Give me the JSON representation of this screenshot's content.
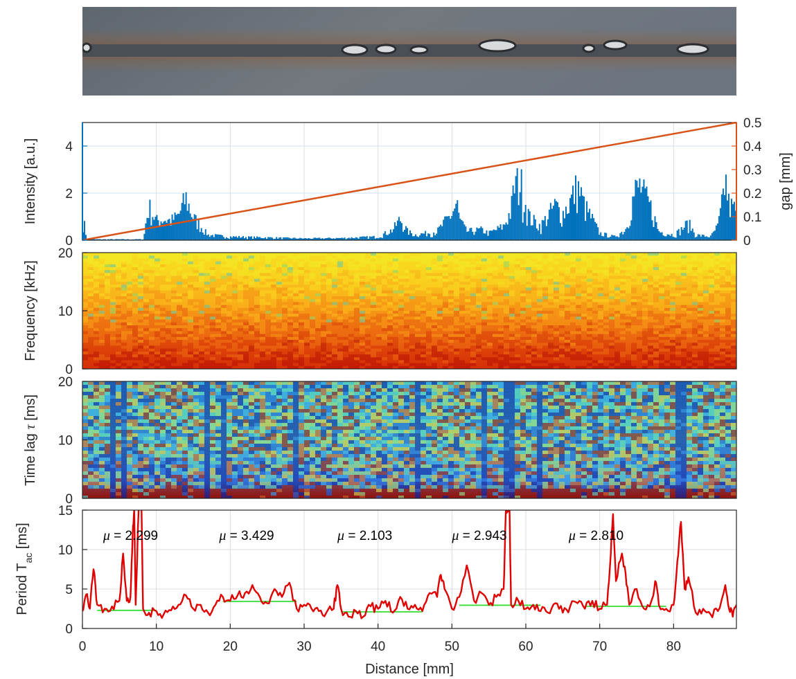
{
  "colors": {
    "intensity": "#0072BD",
    "gap": "#D95319",
    "period": "#E00000",
    "mean": "#33DD33",
    "grid": "#DDDDDD",
    "frame": "#262626"
  },
  "chart_data": [
    {
      "type": "image",
      "description_icon": "weld-seam-photo"
    },
    {
      "type": "bar",
      "ylabel": "Intensity [a.u.]",
      "y2label": "gap [mm]",
      "xlim": [
        0,
        88.5
      ],
      "ylim": [
        0,
        5
      ],
      "y2lim": [
        0,
        0.5
      ],
      "yticks": [
        "0",
        "2",
        "4"
      ],
      "y2ticks": [
        "0",
        "0.1",
        "0.2",
        "0.3",
        "0.4",
        "0.5"
      ],
      "gap_line": {
        "x": [
          0,
          88.5
        ],
        "y": [
          0,
          0.5
        ]
      },
      "intensity_envelope": [
        [
          0,
          1.6
        ],
        [
          0.3,
          0.8
        ],
        [
          0.6,
          0.05
        ],
        [
          8.3,
          0.05
        ],
        [
          8.5,
          0.8
        ],
        [
          9,
          1.9
        ],
        [
          10,
          1.1
        ],
        [
          11,
          1.2
        ],
        [
          12,
          1.1
        ],
        [
          13,
          1.4
        ],
        [
          14,
          2.4
        ],
        [
          15,
          1.3
        ],
        [
          16,
          0.8
        ],
        [
          17,
          0.3
        ],
        [
          20,
          0.2
        ],
        [
          25,
          0.15
        ],
        [
          30,
          0.1
        ],
        [
          35,
          0.12
        ],
        [
          40,
          0.2
        ],
        [
          42,
          0.6
        ],
        [
          43,
          1.2
        ],
        [
          44,
          0.5
        ],
        [
          45,
          0.3
        ],
        [
          48,
          0.5
        ],
        [
          49,
          1.0
        ],
        [
          50,
          1.5
        ],
        [
          50.7,
          2.1
        ],
        [
          51,
          1.2
        ],
        [
          52,
          0.5
        ],
        [
          54,
          0.6
        ],
        [
          55,
          0.4
        ],
        [
          56,
          0.6
        ],
        [
          57,
          0.8
        ],
        [
          58,
          1.7
        ],
        [
          58.5,
          3.2
        ],
        [
          59.3,
          3.3
        ],
        [
          59.8,
          2.5
        ],
        [
          60.5,
          1.3
        ],
        [
          62,
          0.8
        ],
        [
          64,
          2.0
        ],
        [
          65,
          1.5
        ],
        [
          66,
          2.2
        ],
        [
          67,
          3.1
        ],
        [
          68,
          1.9
        ],
        [
          69,
          1.2
        ],
        [
          70,
          0.4
        ],
        [
          71,
          0.3
        ],
        [
          72,
          0.2
        ],
        [
          73.5,
          0.6
        ],
        [
          74,
          1.5
        ],
        [
          74.8,
          2.8
        ],
        [
          75.5,
          3.1
        ],
        [
          76,
          2.6
        ],
        [
          77,
          1.8
        ],
        [
          78,
          0.5
        ],
        [
          80,
          0.3
        ],
        [
          81,
          0.6
        ],
        [
          82,
          1.0
        ],
        [
          83,
          0.3
        ],
        [
          85,
          0.2
        ],
        [
          86,
          0.8
        ],
        [
          86.5,
          1.9
        ],
        [
          87,
          3.5
        ],
        [
          87.5,
          2.0
        ],
        [
          88.5,
          1.7
        ]
      ]
    },
    {
      "type": "heatmap",
      "ylabel": "Frequency [kHz]",
      "ylim": [
        0,
        20
      ],
      "yticks": [
        "0",
        "10",
        "20"
      ],
      "colormap": "jet"
    },
    {
      "type": "heatmap",
      "ylabel": "Time lag τ [ms]",
      "ylabel_text": "Time lag ",
      "ylabel_symbol": "τ",
      "ylabel_unit": " [ms]",
      "ylim": [
        0,
        20
      ],
      "yticks": [
        "0",
        "10",
        "20"
      ],
      "colormap": "jet"
    },
    {
      "type": "line",
      "ylabel_main": "Period T",
      "ylabel_sub": "ac",
      "ylabel_unit": " [ms]",
      "xlabel": "Distance [mm]",
      "xlim": [
        0,
        88.5
      ],
      "ylim": [
        0,
        15
      ],
      "xticks": [
        "0",
        "10",
        "20",
        "30",
        "40",
        "50",
        "60",
        "70",
        "80"
      ],
      "yticks": [
        "0",
        "5",
        "10",
        "15"
      ],
      "segments": [
        {
          "mu_symbol": "μ",
          "mu_text": " = 2.299",
          "x": [
            2,
            10
          ],
          "mean": 2.299,
          "label_x": 2.8
        },
        {
          "mu_symbol": "μ",
          "mu_text": " = 3.429",
          "x": [
            19,
            29
          ],
          "mean": 3.429,
          "label_x": 18.5
        },
        {
          "mu_symbol": "μ",
          "mu_text": " = 2.103",
          "x": [
            35,
            46
          ],
          "mean": 2.103,
          "label_x": 34.5
        },
        {
          "mu_symbol": "μ",
          "mu_text": " = 2.943",
          "x": [
            51,
            62
          ],
          "mean": 2.943,
          "label_x": 50
        },
        {
          "mu_symbol": "μ",
          "mu_text": " = 2.810",
          "x": [
            68,
            79
          ],
          "mean": 2.81,
          "label_x": 65.8
        }
      ],
      "period_trace": [
        [
          0,
          2.2
        ],
        [
          0.5,
          4.3
        ],
        [
          1,
          2.5
        ],
        [
          1.5,
          7.5
        ],
        [
          2,
          3
        ],
        [
          3,
          2.5
        ],
        [
          4,
          2.8
        ],
        [
          5,
          3.5
        ],
        [
          5.5,
          9.5
        ],
        [
          6,
          3.5
        ],
        [
          6.5,
          4
        ],
        [
          6.8,
          12
        ],
        [
          7.0,
          15
        ],
        [
          7.2,
          3
        ],
        [
          7.6,
          15
        ],
        [
          8.0,
          15
        ],
        [
          8.2,
          2.5
        ],
        [
          9,
          2
        ],
        [
          10,
          2.2
        ],
        [
          11,
          1.8
        ],
        [
          12,
          2.3
        ],
        [
          13,
          3
        ],
        [
          14,
          4.2
        ],
        [
          15,
          2.5
        ],
        [
          16,
          3
        ],
        [
          17,
          2
        ],
        [
          18,
          3
        ],
        [
          19,
          4
        ],
        [
          20,
          3.5
        ],
        [
          21,
          4.2
        ],
        [
          22,
          4.5
        ],
        [
          23,
          5.5
        ],
        [
          24,
          4
        ],
        [
          25,
          3.2
        ],
        [
          26,
          5
        ],
        [
          27,
          4
        ],
        [
          28,
          5.8
        ],
        [
          29,
          2.5
        ],
        [
          30,
          3
        ],
        [
          31,
          2.5
        ],
        [
          32,
          2.2
        ],
        [
          33,
          2
        ],
        [
          34,
          2.5
        ],
        [
          34.5,
          5.5
        ],
        [
          35,
          2.5
        ],
        [
          36,
          1.5
        ],
        [
          37,
          2.2
        ],
        [
          38,
          1.5
        ],
        [
          39,
          2.8
        ],
        [
          40,
          2.5
        ],
        [
          41,
          3.5
        ],
        [
          42,
          2
        ],
        [
          43,
          4
        ],
        [
          44,
          2.5
        ],
        [
          45,
          3
        ],
        [
          46,
          2.2
        ],
        [
          47,
          4.5
        ],
        [
          48,
          4
        ],
        [
          48.5,
          6.8
        ],
        [
          49,
          5
        ],
        [
          50,
          2.5
        ],
        [
          51,
          4
        ],
        [
          52,
          8
        ],
        [
          53,
          3.5
        ],
        [
          54,
          4.5
        ],
        [
          55,
          3
        ],
        [
          56,
          4
        ],
        [
          57,
          5
        ],
        [
          57.3,
          15
        ],
        [
          57.8,
          15
        ],
        [
          58,
          3
        ],
        [
          59,
          3.5
        ],
        [
          60,
          2.5
        ],
        [
          61,
          3
        ],
        [
          62,
          2.2
        ],
        [
          63,
          2
        ],
        [
          64,
          3.2
        ],
        [
          65,
          2
        ],
        [
          66,
          2.8
        ],
        [
          67,
          3.2
        ],
        [
          68,
          2.5
        ],
        [
          69,
          3.5
        ],
        [
          70,
          2.5
        ],
        [
          71,
          3
        ],
        [
          71.5,
          9.5
        ],
        [
          71.8,
          14.5
        ],
        [
          72.2,
          6
        ],
        [
          73,
          9.5
        ],
        [
          73.5,
          7
        ],
        [
          74,
          3
        ],
        [
          75,
          5
        ],
        [
          76,
          2.5
        ],
        [
          77,
          3.5
        ],
        [
          77.5,
          6
        ],
        [
          78,
          3
        ],
        [
          79,
          2.5
        ],
        [
          80,
          3
        ],
        [
          80.5,
          8.5
        ],
        [
          81,
          13.5
        ],
        [
          81.5,
          5
        ],
        [
          82,
          6.5
        ],
        [
          83,
          2
        ],
        [
          84,
          2.5
        ],
        [
          85,
          1.8
        ],
        [
          86,
          2.2
        ],
        [
          87,
          5.5
        ],
        [
          87.5,
          2.5
        ],
        [
          88,
          1.5
        ],
        [
          88.5,
          3
        ]
      ]
    }
  ]
}
